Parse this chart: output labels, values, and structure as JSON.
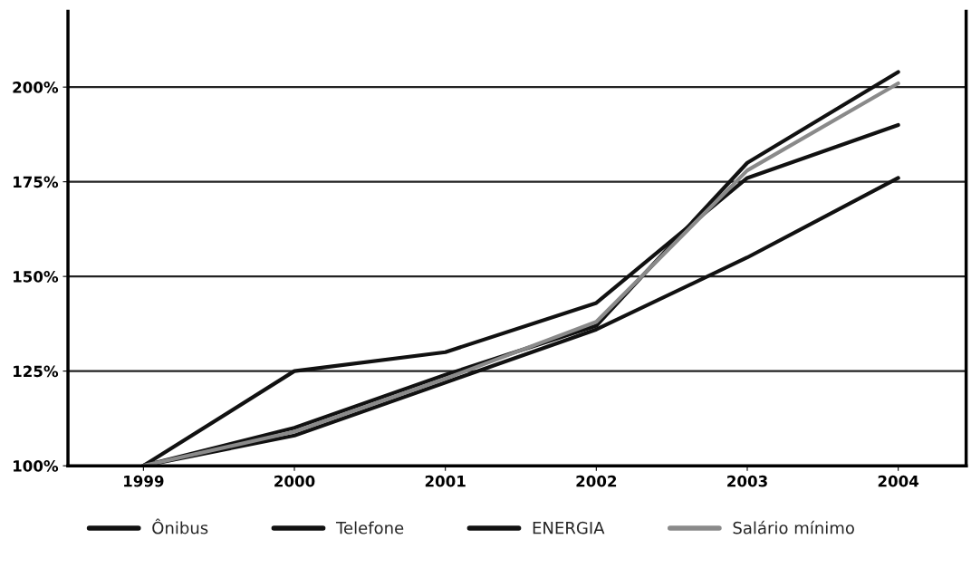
{
  "chart_data": {
    "type": "line",
    "categories": [
      "1999",
      "2000",
      "2001",
      "2002",
      "2003",
      "2004"
    ],
    "series": [
      {
        "name": "Ônibus",
        "color": "#111111",
        "values": [
          100,
          125,
          130,
          143,
          176,
          190
        ]
      },
      {
        "name": "Telefone",
        "color": "#111111",
        "values": [
          100,
          110,
          124,
          137,
          180,
          204
        ]
      },
      {
        "name": "ENERGIA",
        "color": "#111111",
        "values": [
          100,
          108,
          122,
          136,
          155,
          176
        ]
      },
      {
        "name": "Salário mínimo",
        "color": "#8a8a8a",
        "values": [
          100,
          109,
          123,
          138,
          178,
          201
        ]
      }
    ],
    "ylim": [
      100,
      220
    ],
    "yticks": [
      {
        "value": 100,
        "label": "100%"
      },
      {
        "value": 125,
        "label": "125%"
      },
      {
        "value": 150,
        "label": "150%"
      },
      {
        "value": 175,
        "label": "175%"
      },
      {
        "value": 200,
        "label": "200%"
      }
    ],
    "grid": "y",
    "legend": "bottom",
    "marker": "none",
    "line_style": "solid"
  }
}
